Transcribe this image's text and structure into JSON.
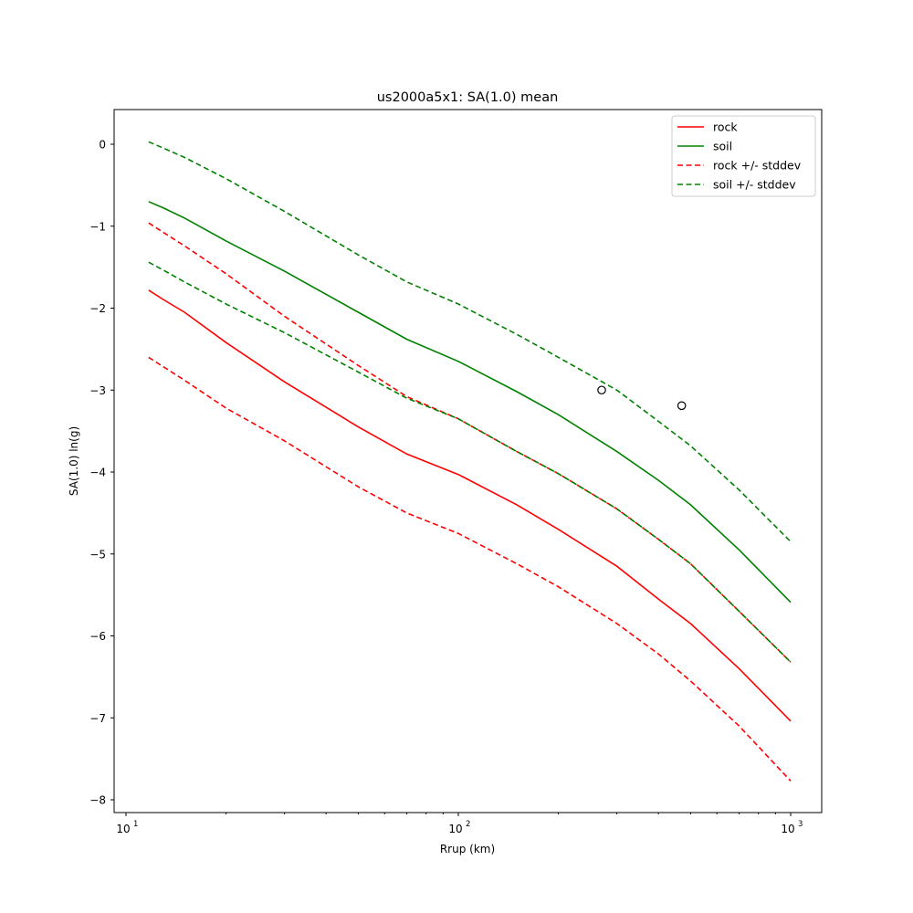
{
  "chart_data": {
    "type": "line",
    "title": "us2000a5x1: SA(1.0) mean",
    "xlabel": "Rrup (km)",
    "ylabel": "SA(1.0) ln(g)",
    "xscale": "log",
    "xlim": [
      9.2,
      1250
    ],
    "ylim": [
      -8.15,
      0.4
    ],
    "xticks": [
      {
        "value": 10,
        "base": "10",
        "exp": "1"
      },
      {
        "value": 100,
        "base": "10",
        "exp": "2"
      },
      {
        "value": 1000,
        "base": "10",
        "exp": "3"
      }
    ],
    "yticks": [
      0,
      -1,
      -2,
      -3,
      -4,
      -5,
      -6,
      -7,
      -8
    ],
    "ytick_labels": [
      "0",
      "−1",
      "−2",
      "−3",
      "−4",
      "−5",
      "−6",
      "−7",
      "−8"
    ],
    "legend_position": "upper right",
    "x": [
      11.7,
      13,
      15,
      20,
      30,
      50,
      70,
      100,
      150,
      200,
      300,
      400,
      500,
      700,
      1000
    ],
    "series": [
      {
        "name": "rock",
        "color": "#ff0000",
        "style": "solid",
        "values": [
          -1.78,
          -1.9,
          -2.05,
          -2.42,
          -2.9,
          -3.45,
          -3.78,
          -4.03,
          -4.4,
          -4.7,
          -5.15,
          -5.55,
          -5.85,
          -6.4,
          -7.04
        ]
      },
      {
        "name": "soil",
        "color": "#008000",
        "style": "solid",
        "values": [
          -0.7,
          -0.78,
          -0.9,
          -1.18,
          -1.55,
          -2.05,
          -2.38,
          -2.65,
          -3.02,
          -3.3,
          -3.75,
          -4.1,
          -4.4,
          -4.95,
          -5.59
        ]
      },
      {
        "name": "rock +/- stddev (upper)",
        "color": "#ff0000",
        "style": "dashed",
        "values": [
          -0.96,
          -1.08,
          -1.24,
          -1.58,
          -2.1,
          -2.7,
          -3.08,
          -3.35,
          -3.75,
          -4.02,
          -4.45,
          -4.82,
          -5.12,
          -5.7,
          -6.32
        ]
      },
      {
        "name": "rock +/- stddev (lower)",
        "color": "#ff0000",
        "style": "dashed",
        "values": [
          -2.6,
          -2.72,
          -2.88,
          -3.22,
          -3.62,
          -4.18,
          -4.5,
          -4.75,
          -5.12,
          -5.4,
          -5.85,
          -6.22,
          -6.55,
          -7.1,
          -7.77
        ]
      },
      {
        "name": "soil +/- stddev (upper)",
        "color": "#008000",
        "style": "dashed",
        "values": [
          0.03,
          -0.05,
          -0.16,
          -0.42,
          -0.82,
          -1.35,
          -1.68,
          -1.95,
          -2.32,
          -2.6,
          -3.0,
          -3.38,
          -3.68,
          -4.22,
          -4.85
        ]
      },
      {
        "name": "soil +/- stddev (lower)",
        "color": "#008000",
        "style": "dashed",
        "values": [
          -1.44,
          -1.54,
          -1.68,
          -1.95,
          -2.3,
          -2.78,
          -3.1,
          -3.35,
          -3.75,
          -4.02,
          -4.45,
          -4.82,
          -5.12,
          -5.7,
          -6.32
        ]
      }
    ],
    "points": [
      {
        "x": 270,
        "y": -3.0
      },
      {
        "x": 470,
        "y": -3.19
      }
    ],
    "legend": [
      {
        "label": "rock",
        "color": "#ff0000",
        "style": "solid"
      },
      {
        "label": "soil",
        "color": "#008000",
        "style": "solid"
      },
      {
        "label": "rock +/- stddev",
        "color": "#ff0000",
        "style": "dashed"
      },
      {
        "label": "soil +/- stddev",
        "color": "#008000",
        "style": "dashed"
      }
    ]
  }
}
